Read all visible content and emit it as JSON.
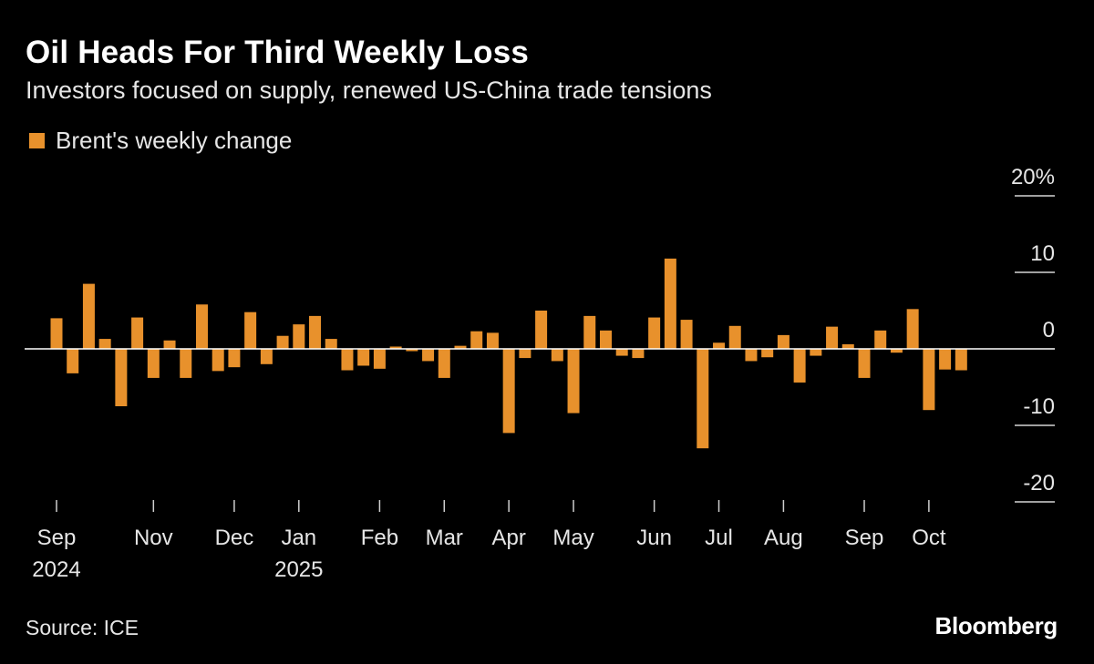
{
  "header": {
    "title": "Oil Heads For Third Weekly Loss",
    "subtitle": "Investors focused on supply, renewed US-China trade tensions"
  },
  "footer": {
    "source": "Source: ICE",
    "brand": "Bloomberg"
  },
  "colors": {
    "bar": "#e8912c",
    "background": "#000000",
    "text": "#ffffff",
    "axis": "#ffffff"
  },
  "chart_data": {
    "type": "bar",
    "title": "Oil Heads For Third Weekly Loss",
    "subtitle": "Investors focused on supply, renewed US-China trade tensions",
    "legend": [
      {
        "name": "Brent's weekly change",
        "color": "#e8912c"
      }
    ],
    "legend_position": "top-left",
    "ylabel": "",
    "ylim": [
      -20,
      20
    ],
    "y_ticks": [
      {
        "value": 20,
        "label": "20%"
      },
      {
        "value": 10,
        "label": "10"
      },
      {
        "value": 0,
        "label": "0"
      },
      {
        "value": -10,
        "label": "-10"
      },
      {
        "value": -20,
        "label": "-20"
      }
    ],
    "x_ticks": [
      {
        "index": 0,
        "label": "Sep",
        "label2": "2024"
      },
      {
        "index": 6,
        "label": "Nov",
        "label2": ""
      },
      {
        "index": 11,
        "label": "Dec",
        "label2": ""
      },
      {
        "index": 15,
        "label": "Jan",
        "label2": "2025"
      },
      {
        "index": 20,
        "label": "Feb",
        "label2": ""
      },
      {
        "index": 24,
        "label": "Mar",
        "label2": ""
      },
      {
        "index": 28,
        "label": "Apr",
        "label2": ""
      },
      {
        "index": 32,
        "label": "May",
        "label2": ""
      },
      {
        "index": 37,
        "label": "Jun",
        "label2": ""
      },
      {
        "index": 41,
        "label": "Jul",
        "label2": ""
      },
      {
        "index": 45,
        "label": "Aug",
        "label2": ""
      },
      {
        "index": 50,
        "label": "Sep",
        "label2": ""
      },
      {
        "index": 54,
        "label": "Oct",
        "label2": ""
      }
    ],
    "series": [
      {
        "name": "Brent's weekly change",
        "values": [
          4.0,
          -3.2,
          8.5,
          1.3,
          -7.5,
          4.1,
          -3.8,
          1.1,
          -3.8,
          5.8,
          -2.9,
          -2.4,
          4.8,
          -2.0,
          1.7,
          3.2,
          4.3,
          1.3,
          -2.8,
          -2.2,
          -2.6,
          0.3,
          -0.3,
          -1.6,
          -3.8,
          0.4,
          2.3,
          2.1,
          -11.0,
          -1.2,
          5.0,
          -1.6,
          -8.4,
          4.3,
          2.4,
          -0.9,
          -1.2,
          4.1,
          11.8,
          3.8,
          -13.0,
          0.8,
          3.0,
          -1.6,
          -1.1,
          1.8,
          -4.4,
          -0.9,
          2.9,
          0.6,
          -3.8,
          2.4,
          -0.5,
          5.2,
          -8.0,
          -2.7,
          -2.8
        ]
      }
    ]
  }
}
